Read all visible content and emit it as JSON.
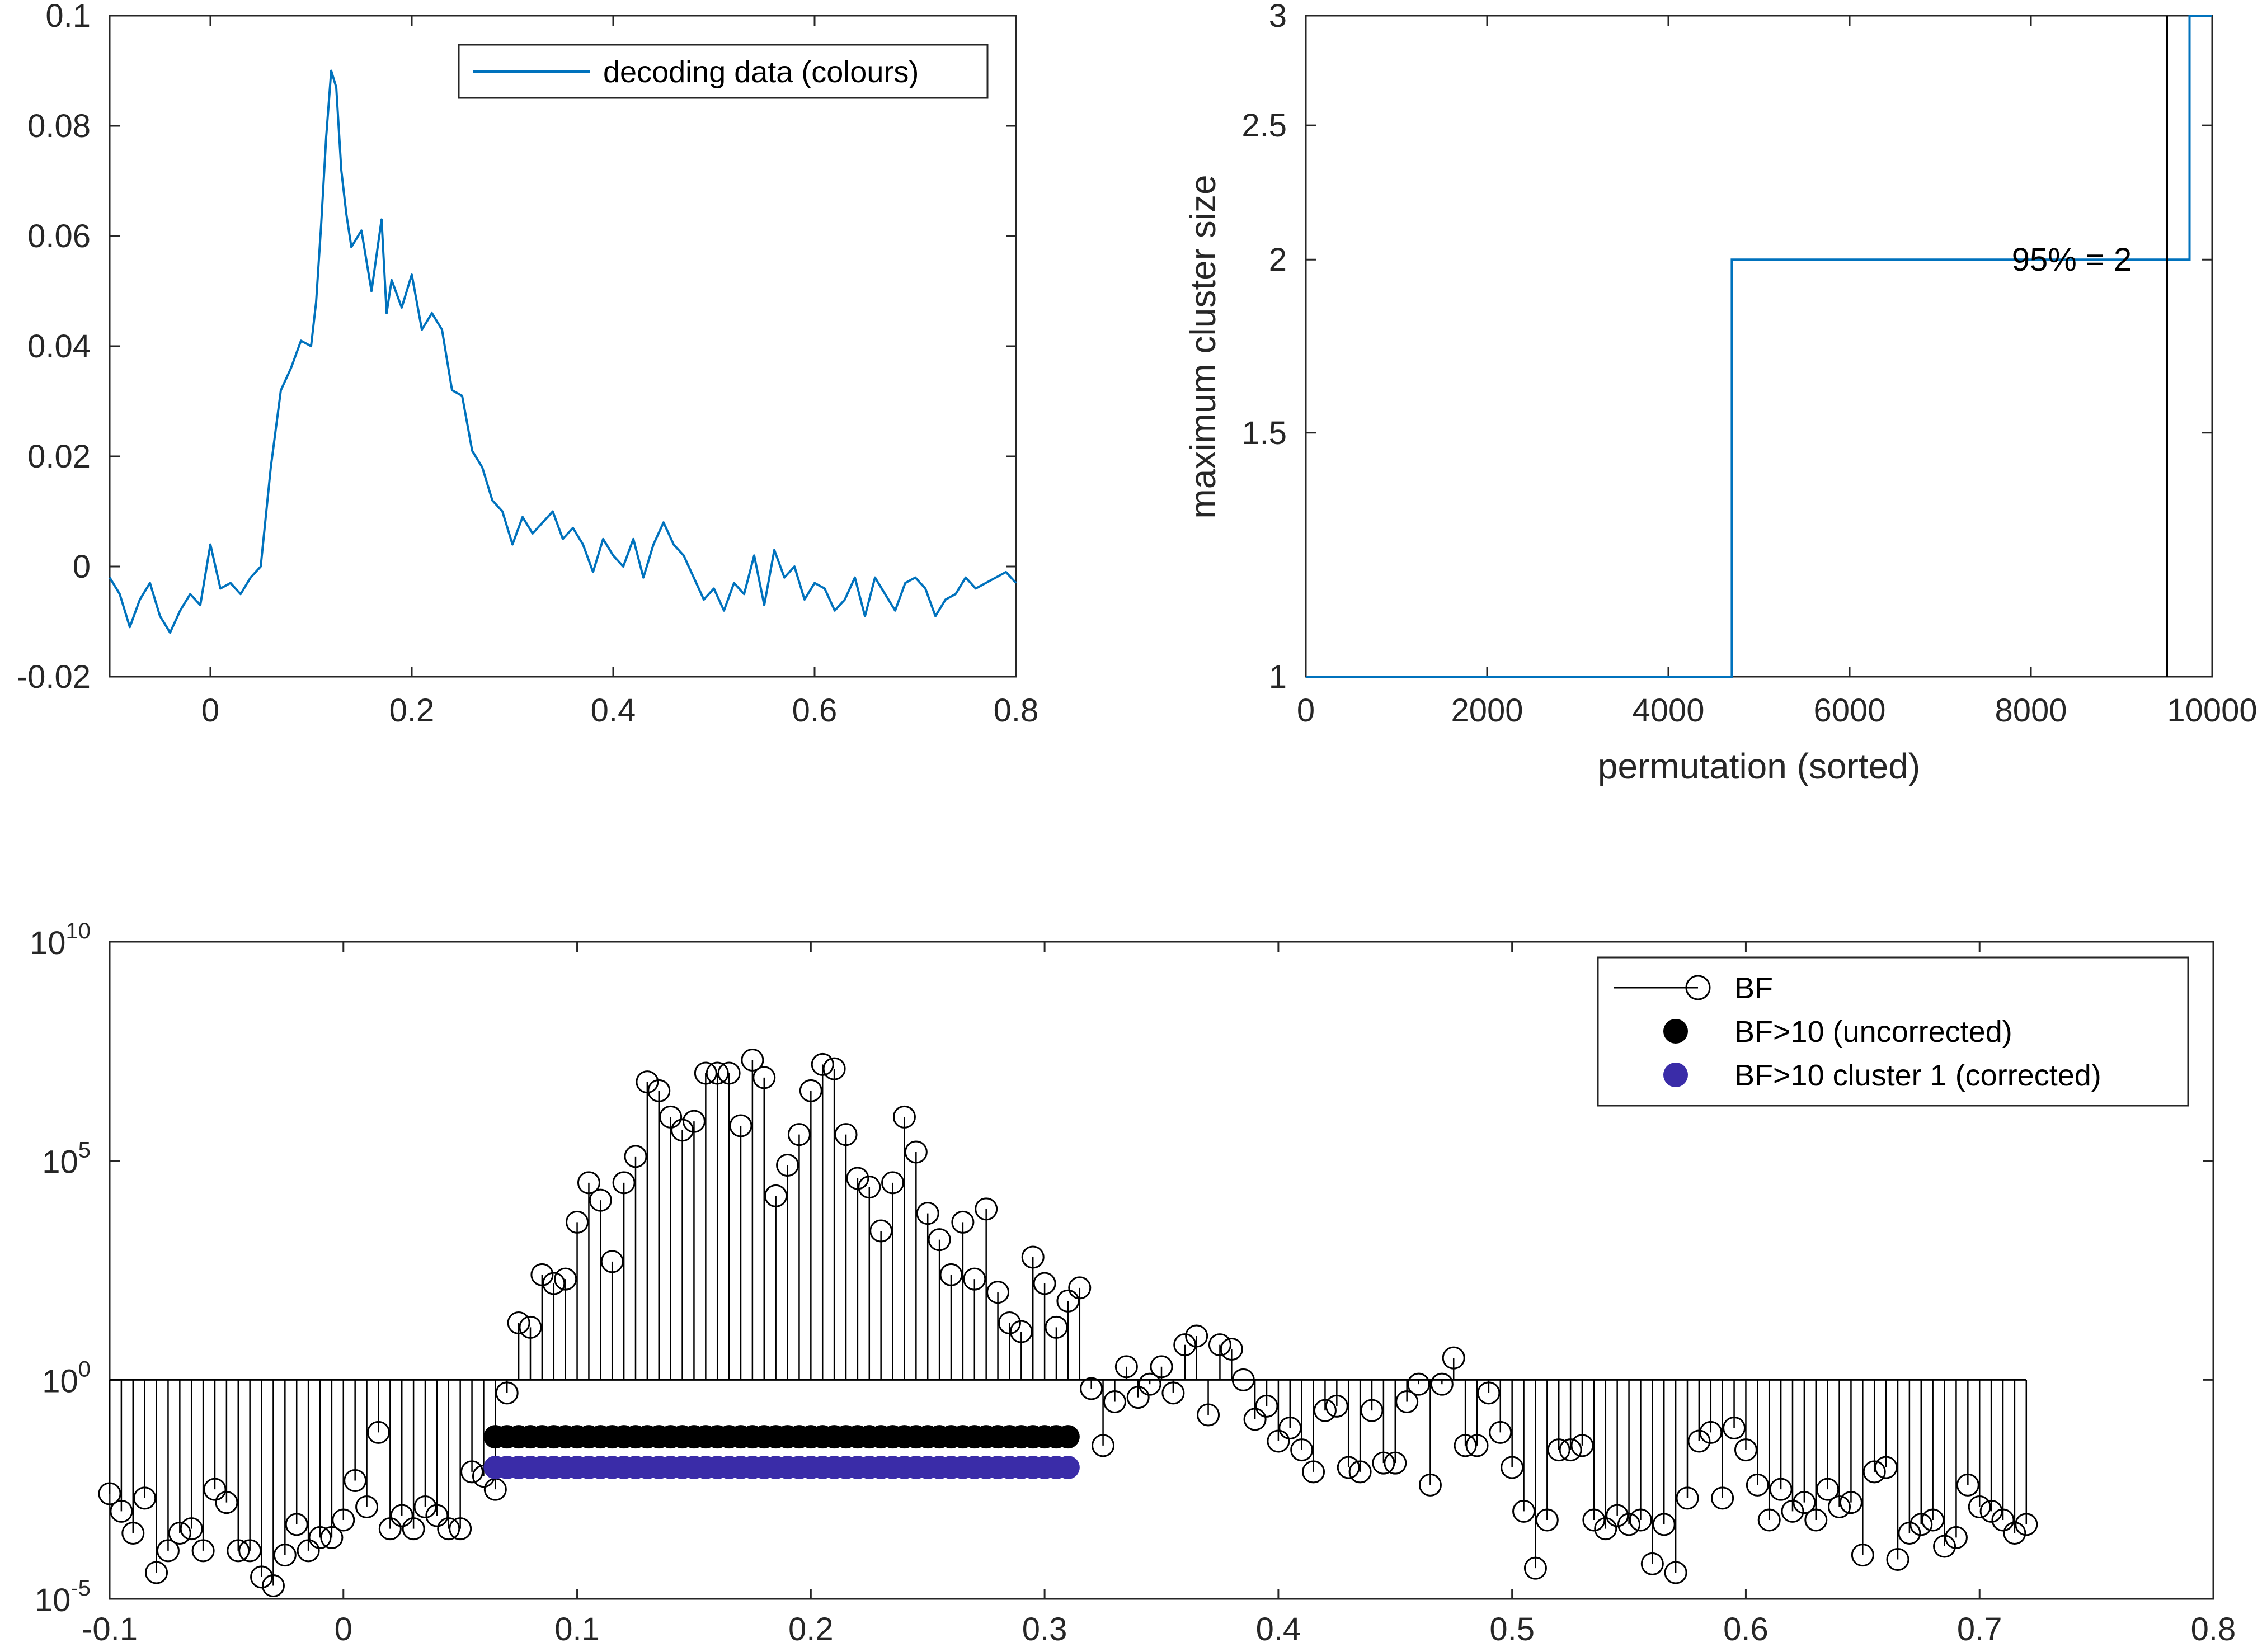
{
  "chart_data": [
    {
      "type": "line",
      "xlim": [
        -0.1,
        0.8
      ],
      "ylim": [
        -0.02,
        0.1
      ],
      "xticks": [
        "0",
        "0.2",
        "0.4",
        "0.6",
        "0.8"
      ],
      "yticks": [
        "-0.02",
        "0",
        "0.02",
        "0.04",
        "0.06",
        "0.08",
        "0.1"
      ],
      "legend": {
        "position": "top-right",
        "entries": [
          "decoding data (colours)"
        ]
      },
      "colors": {
        "series": "#0072BD"
      },
      "series": [
        {
          "name": "decoding data (colours)",
          "x": [
            -0.1,
            -0.09,
            -0.08,
            -0.07,
            -0.06,
            -0.05,
            -0.04,
            -0.03,
            -0.02,
            -0.01,
            0.0,
            0.01,
            0.02,
            0.03,
            0.04,
            0.05,
            0.06,
            0.07,
            0.08,
            0.09,
            0.1,
            0.105,
            0.11,
            0.115,
            0.12,
            0.125,
            0.13,
            0.135,
            0.14,
            0.15,
            0.16,
            0.17,
            0.175,
            0.18,
            0.19,
            0.2,
            0.21,
            0.22,
            0.23,
            0.24,
            0.25,
            0.26,
            0.27,
            0.28,
            0.29,
            0.3,
            0.31,
            0.32,
            0.33,
            0.34,
            0.35,
            0.36,
            0.37,
            0.38,
            0.39,
            0.4,
            0.41,
            0.42,
            0.43,
            0.44,
            0.45,
            0.46,
            0.47,
            0.48,
            0.49,
            0.5,
            0.51,
            0.52,
            0.53,
            0.54,
            0.55,
            0.56,
            0.57,
            0.58,
            0.59,
            0.6,
            0.61,
            0.62,
            0.63,
            0.64,
            0.65,
            0.66,
            0.67,
            0.68,
            0.69,
            0.7,
            0.71,
            0.72,
            0.73,
            0.74,
            0.75,
            0.76,
            0.77,
            0.78,
            0.79,
            0.8
          ],
          "values": [
            -0.002,
            -0.005,
            -0.011,
            -0.006,
            -0.003,
            -0.009,
            -0.012,
            -0.008,
            -0.005,
            -0.007,
            0.004,
            -0.004,
            -0.003,
            -0.005,
            -0.002,
            0.0,
            0.018,
            0.032,
            0.036,
            0.041,
            0.04,
            0.048,
            0.062,
            0.078,
            0.09,
            0.087,
            0.072,
            0.064,
            0.058,
            0.061,
            0.05,
            0.063,
            0.046,
            0.052,
            0.047,
            0.053,
            0.043,
            0.046,
            0.043,
            0.032,
            0.031,
            0.021,
            0.018,
            0.012,
            0.01,
            0.004,
            0.009,
            0.006,
            0.008,
            0.01,
            0.005,
            0.007,
            0.004,
            -0.001,
            0.005,
            0.002,
            0.0,
            0.005,
            -0.002,
            0.004,
            0.008,
            0.004,
            0.002,
            -0.002,
            -0.006,
            -0.004,
            -0.008,
            -0.003,
            -0.005,
            0.002,
            -0.007,
            0.003,
            -0.002,
            0.0,
            -0.006,
            -0.003,
            -0.004,
            -0.008,
            -0.006,
            -0.002,
            -0.009,
            -0.002,
            -0.005,
            -0.008,
            -0.003,
            -0.002,
            -0.004,
            -0.009,
            -0.006,
            -0.005,
            -0.002,
            -0.004,
            -0.003,
            -0.002,
            -0.001,
            -0.003
          ]
        }
      ]
    },
    {
      "type": "line",
      "xlim": [
        0,
        10000
      ],
      "ylim": [
        1,
        3
      ],
      "yscale": "log",
      "xlabel": "permutation (sorted)",
      "ylabel": "maximum cluster size",
      "xticks": [
        "0",
        "2000",
        "4000",
        "6000",
        "8000",
        "10000"
      ],
      "yticks": [
        "1",
        "1.5",
        "2",
        "2.5",
        "3"
      ],
      "colors": {
        "series": "#0072BD",
        "threshold": "#000000"
      },
      "series": [
        {
          "x": [
            0,
            4700,
            4700,
            9750,
            9750,
            10000
          ],
          "values": [
            1,
            1,
            2,
            2,
            3,
            3
          ]
        }
      ],
      "threshold_x": 9500,
      "annotation": "95% = 2"
    },
    {
      "type": "scatter",
      "xlim": [
        -0.1,
        0.8
      ],
      "ylim_exponent": [
        -5,
        10
      ],
      "yscale": "log",
      "baseline": 1,
      "xticks": [
        "-0.1",
        "0",
        "0.1",
        "0.2",
        "0.3",
        "0.4",
        "0.5",
        "0.6",
        "0.7",
        "0.8"
      ],
      "yticks": [
        {
          "base": "10",
          "exp": "-5"
        },
        {
          "base": "10",
          "exp": "0"
        },
        {
          "base": "10",
          "exp": "5"
        },
        {
          "base": "10",
          "exp": "10"
        }
      ],
      "legend": {
        "position": "top-right",
        "entries": [
          "BF",
          "BF>10 (uncorrected)",
          "BF>10 cluster 1 (corrected)"
        ]
      },
      "colors": {
        "bf": "#000000",
        "uncorrected": "#000000",
        "cluster": "#3A2CA8"
      },
      "bf_series": {
        "name": "BF",
        "x_start": -0.1,
        "x_step": 0.005,
        "log10_values": [
          -2.6,
          -3.0,
          -3.5,
          -2.7,
          -4.4,
          -3.9,
          -3.5,
          -3.4,
          -3.9,
          -2.5,
          -2.8,
          -3.9,
          -3.9,
          -4.5,
          -4.7,
          -4.0,
          -3.3,
          -3.9,
          -3.6,
          -3.6,
          -3.2,
          -2.3,
          -2.9,
          -1.2,
          -3.4,
          -3.1,
          -3.4,
          -2.9,
          -3.1,
          -3.4,
          -3.4,
          -2.1,
          -2.2,
          -2.5,
          -0.3,
          1.3,
          1.2,
          2.4,
          2.2,
          2.3,
          3.6,
          4.5,
          4.1,
          2.7,
          4.5,
          5.1,
          6.8,
          6.6,
          6.0,
          5.7,
          5.9,
          7.0,
          7.0,
          7.0,
          5.8,
          7.3,
          6.9,
          4.2,
          4.9,
          5.6,
          6.6,
          7.2,
          7.1,
          5.6,
          4.6,
          4.4,
          3.4,
          4.5,
          6.0,
          5.2,
          3.8,
          3.2,
          2.4,
          3.6,
          2.3,
          3.9,
          2.0,
          1.3,
          1.1,
          2.8,
          2.2,
          1.2,
          1.8,
          2.1,
          -0.2,
          -1.5,
          -0.5,
          0.3,
          -0.4,
          -0.1,
          0.3,
          -0.3,
          0.8,
          1.0,
          -0.8,
          0.8,
          0.7,
          0.0,
          -0.9,
          -0.6,
          -1.4,
          -1.1,
          -1.6,
          -2.1,
          -0.7,
          -0.6,
          -2.0,
          -2.1,
          -0.7,
          -1.9,
          -1.9,
          -0.5,
          -0.1,
          -2.4,
          -0.1,
          0.5,
          -1.5,
          -1.5,
          -0.3,
          -1.2,
          -2.0,
          -3.0,
          -4.3,
          -3.2,
          -1.6,
          -1.6,
          -1.5,
          -3.2,
          -3.4,
          -3.1,
          -3.3,
          -3.2,
          -4.2,
          -3.3,
          -4.4,
          -2.7,
          -1.4,
          -1.2,
          -2.7,
          -1.1,
          -1.6,
          -2.4,
          -3.2,
          -2.5,
          -3.0,
          -2.8,
          -3.2,
          -2.5,
          -2.9,
          -2.8,
          -4.0,
          -2.1,
          -2.0,
          -4.1,
          -3.5,
          -3.3,
          -3.2,
          -3.8,
          -3.6,
          -2.4,
          -2.9,
          -3.0,
          -3.2,
          -3.5,
          -3.3
        ]
      },
      "markers_uncorrected": {
        "x_range": [
          0.065,
          0.31
        ],
        "x_step": 0.005,
        "log10_level": -1.3
      },
      "markers_cluster": {
        "x_range": [
          0.065,
          0.31
        ],
        "x_step": 0.005,
        "log10_level": -2.0
      }
    }
  ]
}
